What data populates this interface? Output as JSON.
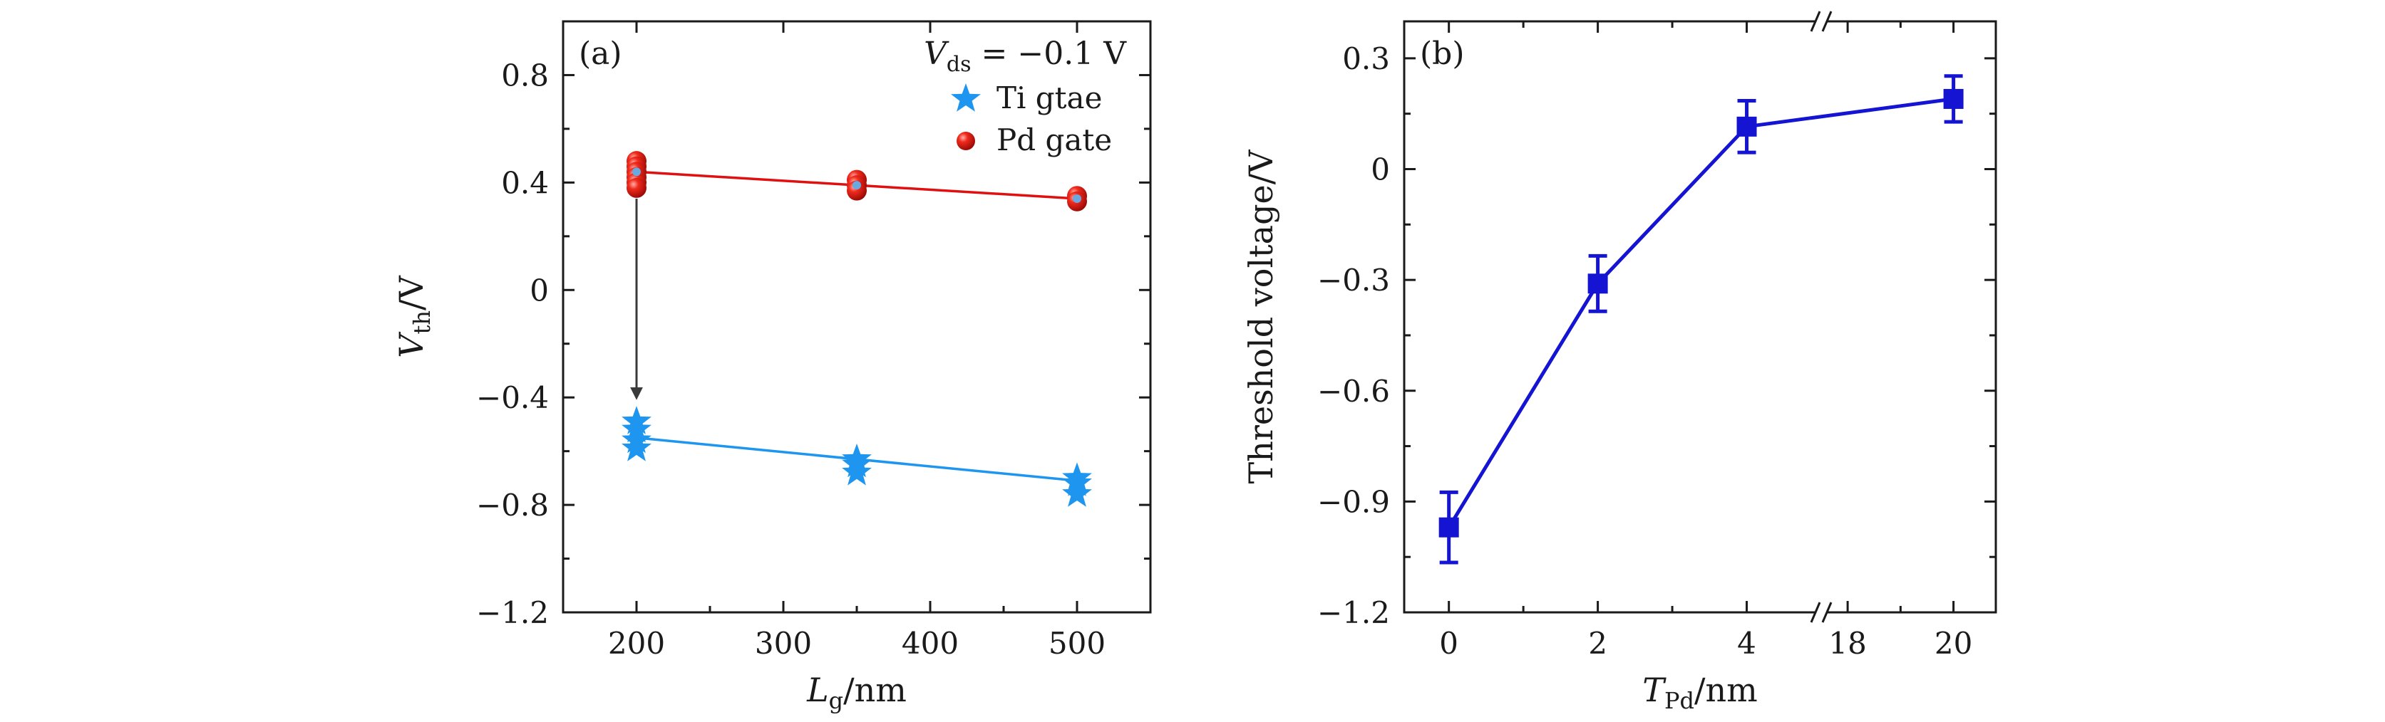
{
  "chart_data": [
    {
      "panel": "(a)",
      "type": "scatter",
      "annotation": "V_ds = −0.1 V",
      "annotation_parts": {
        "v": "V",
        "sub": "ds",
        "rest": "= −0.1 V"
      },
      "xlabel": {
        "main": "L",
        "sub": "g",
        "unit": "/nm"
      },
      "ylabel": {
        "main": "V",
        "sub": "th",
        "unit": "/V"
      },
      "xlim": [
        150,
        550
      ],
      "ylim": [
        -1.2,
        1.0
      ],
      "xticks": [
        200,
        300,
        400,
        500
      ],
      "xtick_labels": [
        "200",
        "300",
        "400",
        "500"
      ],
      "yticks": [
        0.8,
        0.4,
        0,
        -0.4,
        -0.8,
        -1.2
      ],
      "ytick_labels": [
        "0.8",
        "0.4",
        "0",
        "−0.4",
        "−0.8",
        "−1.2"
      ],
      "legend_position": "top-right",
      "series": [
        {
          "name": "Ti gtae",
          "marker": "star",
          "color": "#1e96f0",
          "points": [
            [
              200,
              -0.49
            ],
            [
              200,
              -0.52
            ],
            [
              200,
              -0.56
            ],
            [
              200,
              -0.59
            ],
            [
              350,
              -0.63
            ],
            [
              350,
              -0.65
            ],
            [
              350,
              -0.68
            ],
            [
              500,
              -0.7
            ],
            [
              500,
              -0.72
            ],
            [
              500,
              -0.76
            ]
          ],
          "fit": {
            "x": [
              200,
              500
            ],
            "y": [
              -0.55,
              -0.71
            ]
          }
        },
        {
          "name": "Pd gate",
          "marker": "sphere",
          "color": "#e01010",
          "points": [
            [
              200,
              0.48
            ],
            [
              200,
              0.46
            ],
            [
              200,
              0.44
            ],
            [
              200,
              0.42
            ],
            [
              200,
              0.4
            ],
            [
              200,
              0.38
            ],
            [
              350,
              0.41
            ],
            [
              350,
              0.39
            ],
            [
              350,
              0.37
            ],
            [
              500,
              0.35
            ],
            [
              500,
              0.33
            ]
          ],
          "fit": {
            "x": [
              200,
              500
            ],
            "y": [
              0.44,
              0.34
            ]
          }
        }
      ],
      "arrow": {
        "from": [
          200,
          0.34
        ],
        "to": [
          200,
          -0.4
        ]
      }
    },
    {
      "panel": "(b)",
      "type": "line",
      "xlabel": {
        "main": "T",
        "sub": "Pd",
        "unit": "/nm"
      },
      "ylabel": "Threshold voltage/V",
      "ylim": [
        -1.2,
        0.4
      ],
      "yticks": [
        0.3,
        0,
        -0.3,
        -0.6,
        -0.9,
        -1.2
      ],
      "ytick_labels": [
        "0.3",
        "0",
        "−0.3",
        "−0.6",
        "−0.9",
        "−1.2"
      ],
      "x_break": {
        "left_range": [
          -0.6,
          5
        ],
        "right_range": [
          17.5,
          20.8
        ]
      },
      "xticks": [
        0,
        2,
        4,
        18,
        20
      ],
      "xtick_labels": [
        "0",
        "2",
        "4",
        "18",
        "20"
      ],
      "series": [
        {
          "name": "",
          "marker": "square",
          "color": "#1414d2",
          "x": [
            0,
            2,
            4,
            20
          ],
          "y": [
            -0.97,
            -0.31,
            0.115,
            0.19
          ],
          "err": [
            0.095,
            0.075,
            0.07,
            0.062
          ]
        }
      ]
    }
  ]
}
